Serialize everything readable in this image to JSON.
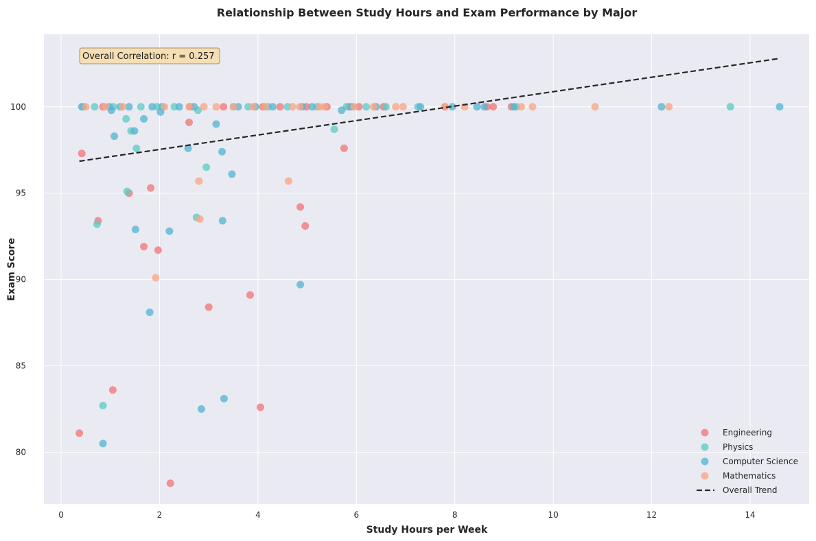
{
  "chart_data": {
    "type": "scatter",
    "title": "Relationship Between Study Hours and Exam Performance by Major",
    "xlabel": "Study Hours per Week",
    "ylabel": "Exam Score",
    "xlim": [
      -0.35,
      15.2
    ],
    "ylim": [
      77.0,
      104.2
    ],
    "xticks": [
      0,
      2,
      4,
      6,
      8,
      10,
      12,
      14
    ],
    "yticks": [
      80,
      85,
      90,
      95,
      100
    ],
    "grid": true,
    "background": "#EAEAF2",
    "legend_position": "bottom-right",
    "annotation": "Overall Correlation: r = 0.257",
    "trend": {
      "name": "Overall Trend",
      "color": "#262626",
      "points": [
        [
          0.37,
          96.85
        ],
        [
          14.6,
          102.8
        ]
      ]
    },
    "series": [
      {
        "name": "Engineering",
        "color": "#F1777A",
        "points": [
          [
            0.37,
            81.1
          ],
          [
            0.42,
            97.3
          ],
          [
            0.75,
            93.4
          ],
          [
            0.85,
            100
          ],
          [
            1.05,
            83.6
          ],
          [
            1.38,
            95.0
          ],
          [
            1.68,
            91.9
          ],
          [
            1.82,
            95.3
          ],
          [
            1.97,
            91.7
          ],
          [
            2.22,
            78.2
          ],
          [
            2.6,
            99.1
          ],
          [
            2.62,
            100
          ],
          [
            3.0,
            88.4
          ],
          [
            3.3,
            100
          ],
          [
            3.84,
            89.1
          ],
          [
            4.05,
            82.6
          ],
          [
            4.1,
            100
          ],
          [
            4.45,
            100
          ],
          [
            4.86,
            94.2
          ],
          [
            4.96,
            93.1
          ],
          [
            4.98,
            100
          ],
          [
            5.4,
            100
          ],
          [
            5.75,
            97.6
          ],
          [
            5.85,
            100
          ],
          [
            6.05,
            100
          ],
          [
            6.55,
            100
          ],
          [
            7.8,
            100
          ],
          [
            8.65,
            100
          ],
          [
            8.78,
            100
          ],
          [
            9.15,
            100
          ]
        ]
      },
      {
        "name": "Physics",
        "color": "#5ECCC4",
        "points": [
          [
            0.45,
            100
          ],
          [
            0.68,
            100
          ],
          [
            0.73,
            93.2
          ],
          [
            0.85,
            82.7
          ],
          [
            1.06,
            100
          ],
          [
            1.32,
            99.3
          ],
          [
            1.34,
            95.1
          ],
          [
            1.42,
            98.6
          ],
          [
            1.53,
            97.6
          ],
          [
            1.62,
            100
          ],
          [
            1.95,
            100
          ],
          [
            2.3,
            100
          ],
          [
            2.75,
            93.6
          ],
          [
            2.78,
            99.8
          ],
          [
            2.95,
            96.5
          ],
          [
            3.5,
            100
          ],
          [
            3.8,
            100
          ],
          [
            4.2,
            100
          ],
          [
            4.6,
            100
          ],
          [
            5.2,
            100
          ],
          [
            5.55,
            98.7
          ],
          [
            5.8,
            100
          ],
          [
            6.2,
            100
          ],
          [
            6.6,
            100
          ],
          [
            7.25,
            100
          ],
          [
            9.25,
            100
          ],
          [
            13.6,
            100
          ]
        ]
      },
      {
        "name": "Computer Science",
        "color": "#56B5D4",
        "points": [
          [
            0.42,
            100
          ],
          [
            0.85,
            80.5
          ],
          [
            0.98,
            100
          ],
          [
            1.02,
            99.8
          ],
          [
            1.08,
            98.3
          ],
          [
            1.2,
            100
          ],
          [
            1.38,
            100
          ],
          [
            1.49,
            98.6
          ],
          [
            1.51,
            92.9
          ],
          [
            1.68,
            99.3
          ],
          [
            1.8,
            88.1
          ],
          [
            1.85,
            100
          ],
          [
            2.02,
            99.7
          ],
          [
            2.05,
            100
          ],
          [
            2.2,
            92.8
          ],
          [
            2.4,
            100
          ],
          [
            2.58,
            97.6
          ],
          [
            2.7,
            100
          ],
          [
            2.85,
            82.5
          ],
          [
            3.15,
            99.0
          ],
          [
            3.27,
            97.4
          ],
          [
            3.28,
            93.4
          ],
          [
            3.31,
            83.1
          ],
          [
            3.47,
            96.1
          ],
          [
            3.6,
            100
          ],
          [
            3.95,
            100
          ],
          [
            4.3,
            100
          ],
          [
            4.86,
            89.7
          ],
          [
            4.9,
            100
          ],
          [
            5.1,
            100
          ],
          [
            5.7,
            99.8
          ],
          [
            5.9,
            100
          ],
          [
            6.4,
            100
          ],
          [
            7.3,
            100
          ],
          [
            7.95,
            100
          ],
          [
            8.45,
            100
          ],
          [
            8.6,
            100
          ],
          [
            9.2,
            100
          ],
          [
            12.2,
            100
          ],
          [
            14.6,
            100
          ]
        ]
      },
      {
        "name": "Mathematics",
        "color": "#F8A586",
        "points": [
          [
            0.5,
            100
          ],
          [
            0.9,
            100
          ],
          [
            1.25,
            100
          ],
          [
            1.92,
            90.1
          ],
          [
            2.1,
            100
          ],
          [
            2.6,
            100
          ],
          [
            2.8,
            95.7
          ],
          [
            2.82,
            93.5
          ],
          [
            2.9,
            100
          ],
          [
            3.15,
            100
          ],
          [
            3.5,
            100
          ],
          [
            3.9,
            100
          ],
          [
            4.15,
            100
          ],
          [
            4.62,
            95.7
          ],
          [
            4.7,
            100
          ],
          [
            4.85,
            100
          ],
          [
            5.25,
            100
          ],
          [
            5.35,
            100
          ],
          [
            5.95,
            100
          ],
          [
            6.35,
            100
          ],
          [
            6.8,
            100
          ],
          [
            6.95,
            100
          ],
          [
            7.8,
            100
          ],
          [
            8.2,
            100
          ],
          [
            9.35,
            100
          ],
          [
            9.58,
            100
          ],
          [
            10.85,
            100
          ],
          [
            12.35,
            100
          ]
        ]
      }
    ]
  }
}
